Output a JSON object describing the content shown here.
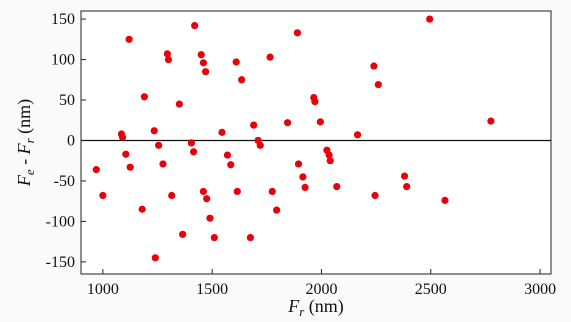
{
  "chart_data": {
    "type": "scatter",
    "xlabel_main": "F",
    "xlabel_sub": "r",
    "xlabel_unit": " (nm)",
    "ylabel_a_main": "F",
    "ylabel_a_sub": "e",
    "ylabel_mid": " - ",
    "ylabel_b_main": "F",
    "ylabel_b_sub": "r",
    "ylabel_unit": " (nm)",
    "xlim": [
      900,
      3050
    ],
    "ylim": [
      -165,
      160
    ],
    "xticks": [
      1000,
      1500,
      2000,
      2500,
      3000
    ],
    "yticks": [
      -150,
      -100,
      -50,
      0,
      50,
      100,
      150
    ],
    "reference_line_y": 0,
    "grid": false,
    "marker_color": "#e8000b",
    "points": [
      {
        "x": 970,
        "y": -36
      },
      {
        "x": 1000,
        "y": -68
      },
      {
        "x": 1085,
        "y": 8
      },
      {
        "x": 1090,
        "y": 4
      },
      {
        "x": 1105,
        "y": -17
      },
      {
        "x": 1120,
        "y": 125
      },
      {
        "x": 1125,
        "y": -33
      },
      {
        "x": 1180,
        "y": -85
      },
      {
        "x": 1190,
        "y": 54
      },
      {
        "x": 1235,
        "y": 12
      },
      {
        "x": 1240,
        "y": -145
      },
      {
        "x": 1255,
        "y": -6
      },
      {
        "x": 1275,
        "y": -29
      },
      {
        "x": 1295,
        "y": 107
      },
      {
        "x": 1300,
        "y": 100
      },
      {
        "x": 1315,
        "y": -68
      },
      {
        "x": 1350,
        "y": 45
      },
      {
        "x": 1365,
        "y": -116
      },
      {
        "x": 1405,
        "y": -3
      },
      {
        "x": 1415,
        "y": -14
      },
      {
        "x": 1420,
        "y": 142
      },
      {
        "x": 1450,
        "y": 106
      },
      {
        "x": 1460,
        "y": 96
      },
      {
        "x": 1470,
        "y": 85
      },
      {
        "x": 1460,
        "y": -63
      },
      {
        "x": 1475,
        "y": -72
      },
      {
        "x": 1490,
        "y": -96
      },
      {
        "x": 1510,
        "y": -120
      },
      {
        "x": 1545,
        "y": 10
      },
      {
        "x": 1570,
        "y": -18
      },
      {
        "x": 1585,
        "y": -30
      },
      {
        "x": 1610,
        "y": 97
      },
      {
        "x": 1615,
        "y": -63
      },
      {
        "x": 1635,
        "y": 75
      },
      {
        "x": 1675,
        "y": -120
      },
      {
        "x": 1690,
        "y": 19
      },
      {
        "x": 1710,
        "y": 0
      },
      {
        "x": 1720,
        "y": -6
      },
      {
        "x": 1765,
        "y": 103
      },
      {
        "x": 1775,
        "y": -63
      },
      {
        "x": 1795,
        "y": -86
      },
      {
        "x": 1845,
        "y": 22
      },
      {
        "x": 1890,
        "y": 133
      },
      {
        "x": 1895,
        "y": -29
      },
      {
        "x": 1915,
        "y": -45
      },
      {
        "x": 1925,
        "y": -58
      },
      {
        "x": 1965,
        "y": 53
      },
      {
        "x": 1970,
        "y": 48
      },
      {
        "x": 1995,
        "y": 23
      },
      {
        "x": 2025,
        "y": -12
      },
      {
        "x": 2035,
        "y": -18
      },
      {
        "x": 2040,
        "y": -25
      },
      {
        "x": 2070,
        "y": -57
      },
      {
        "x": 2165,
        "y": 7
      },
      {
        "x": 2240,
        "y": 92
      },
      {
        "x": 2245,
        "y": -68
      },
      {
        "x": 2260,
        "y": 69
      },
      {
        "x": 2380,
        "y": -44
      },
      {
        "x": 2390,
        "y": -57
      },
      {
        "x": 2495,
        "y": 150
      },
      {
        "x": 2565,
        "y": -74
      },
      {
        "x": 2775,
        "y": 24
      }
    ]
  }
}
